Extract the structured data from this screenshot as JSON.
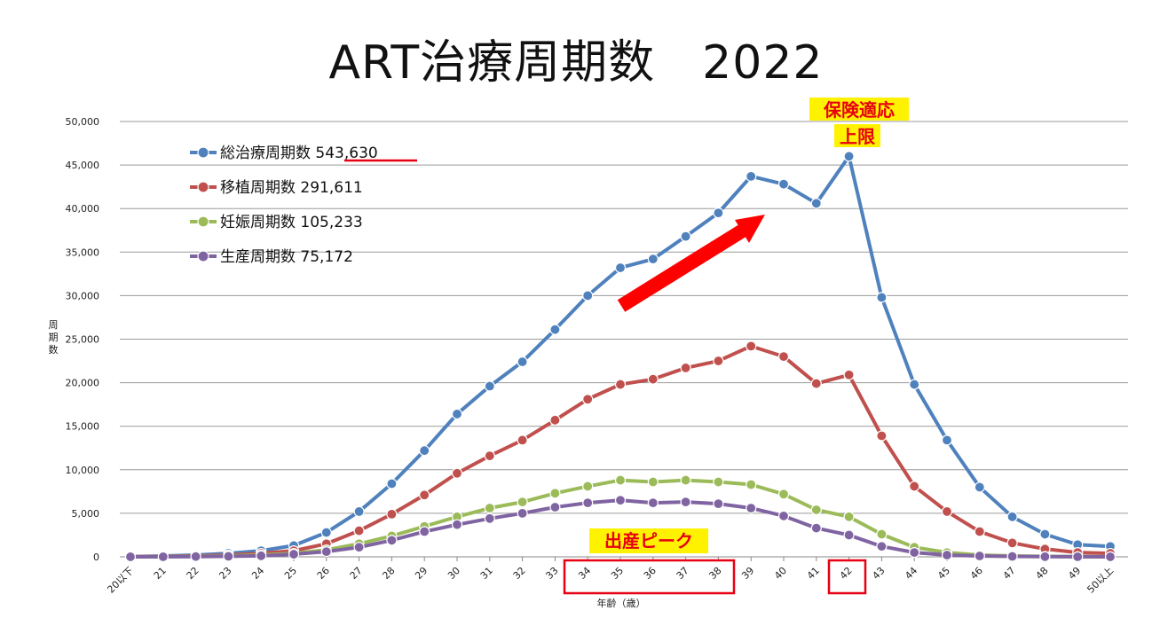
{
  "title": "ART治療周期数　2022",
  "chart_data": {
    "type": "line",
    "title": "ART治療周期数　2022",
    "xlabel": "年齢（歳）",
    "ylabel": "周期数",
    "ylim": [
      0,
      50000
    ],
    "yticks": [
      "0",
      "5,000",
      "10,000",
      "15,000",
      "20,000",
      "25,000",
      "30,000",
      "35,000",
      "40,000",
      "45,000",
      "50,000"
    ],
    "categories": [
      "20以下",
      "21",
      "22",
      "23",
      "24",
      "25",
      "26",
      "27",
      "28",
      "29",
      "30",
      "31",
      "32",
      "33",
      "34",
      "35",
      "36",
      "37",
      "38",
      "39",
      "40",
      "41",
      "42",
      "43",
      "44",
      "45",
      "46",
      "47",
      "48",
      "49",
      "50以上"
    ],
    "legend_position": "top-left",
    "series": [
      {
        "name": "総治療周期数",
        "total": "543,630",
        "color": "#4f81bd",
        "values": [
          20,
          100,
          200,
          400,
          700,
          1300,
          2800,
          5200,
          8400,
          12200,
          16400,
          19600,
          22400,
          26100,
          30000,
          33200,
          34200,
          36800,
          39500,
          43700,
          42800,
          40600,
          46000,
          29800,
          19800,
          13400,
          8000,
          4600,
          2600,
          1400,
          1200
        ]
      },
      {
        "name": "移植周期数",
        "total": "291,611",
        "color": "#c0504d",
        "values": [
          10,
          50,
          100,
          200,
          400,
          700,
          1500,
          3000,
          4900,
          7100,
          9600,
          11600,
          13400,
          15700,
          18100,
          19800,
          20400,
          21700,
          22500,
          24200,
          23000,
          19900,
          20900,
          13900,
          8100,
          5200,
          2900,
          1600,
          900,
          500,
          400
        ]
      },
      {
        "name": "妊娠周期数",
        "total": "105,233",
        "color": "#9bbb59",
        "values": [
          5,
          20,
          50,
          100,
          200,
          400,
          800,
          1500,
          2400,
          3500,
          4600,
          5600,
          6300,
          7300,
          8100,
          8800,
          8600,
          8800,
          8600,
          8300,
          7200,
          5400,
          4600,
          2600,
          1100,
          500,
          200,
          100,
          50,
          20,
          10
        ]
      },
      {
        "name": "生産周期数",
        "total": "75,172",
        "color": "#8064a2",
        "values": [
          5,
          10,
          30,
          60,
          120,
          300,
          600,
          1100,
          1900,
          2900,
          3700,
          4400,
          5000,
          5700,
          6200,
          6500,
          6200,
          6300,
          6100,
          5600,
          4700,
          3300,
          2500,
          1200,
          500,
          200,
          100,
          50,
          20,
          10,
          5
        ]
      }
    ]
  },
  "annotations": {
    "insurance_limit_line1": "保険適応",
    "insurance_limit_line2": "上限",
    "birth_peak": "出産ピーク"
  },
  "colors": {
    "callout_text": "#e60012",
    "callout_bg": "#fff200",
    "arrow": "#ff0000",
    "box": "#e60012"
  }
}
